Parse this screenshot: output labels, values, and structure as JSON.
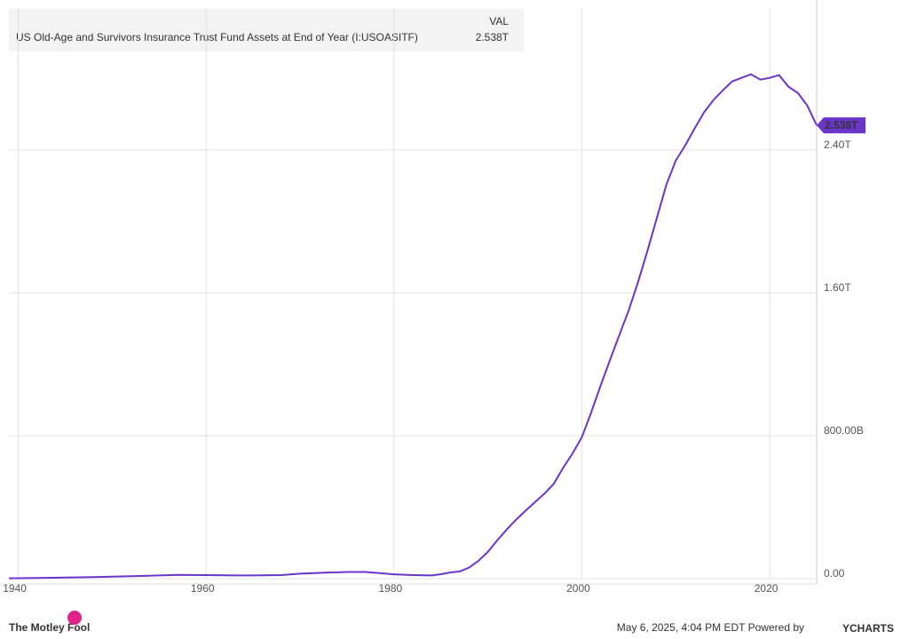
{
  "chart_data": {
    "type": "line",
    "legend_header": "VAL",
    "x": [
      1939,
      1942,
      1945,
      1948,
      1950,
      1953,
      1955,
      1957,
      1960,
      1963,
      1965,
      1968,
      1970,
      1973,
      1975,
      1977,
      1980,
      1982,
      1984,
      1985,
      1986,
      1987,
      1988,
      1989,
      1990,
      1991,
      1992,
      1993,
      1994,
      1995,
      1996,
      1997,
      1998,
      1999,
      2000,
      2001,
      2002,
      2003,
      2004,
      2005,
      2006,
      2007,
      2008,
      2009,
      2010,
      2011,
      2012,
      2013,
      2014,
      2015,
      2016,
      2017,
      2018,
      2019,
      2020,
      2021,
      2022,
      2023,
      2024,
      2025
    ],
    "series": [
      {
        "name": "US Old-Age and Survivors Insurance Trust Fund Assets at End of Year (I:USOASITF)",
        "color": "#6a35c9",
        "values": [
          2,
          4,
          6,
          9,
          11,
          15,
          18,
          21,
          20,
          18,
          18,
          20,
          28,
          34,
          37,
          37,
          24,
          20,
          18,
          25,
          35,
          40,
          62,
          100,
          150,
          215,
          275,
          330,
          380,
          428,
          475,
          530,
          620,
          700,
          792,
          931,
          1081,
          1225,
          1365,
          1504,
          1663,
          1838,
          2022,
          2206,
          2341,
          2425,
          2520,
          2610,
          2679,
          2734,
          2784,
          2804,
          2824,
          2794,
          2804,
          2819,
          2754,
          2719,
          2649,
          2538
        ],
        "value_labels": [
          null,
          null,
          null,
          null,
          null,
          null,
          null,
          null,
          null,
          null,
          null,
          null,
          null,
          null,
          null,
          null,
          null,
          null,
          null,
          null,
          null,
          null,
          null,
          null,
          null,
          null,
          null,
          null,
          null,
          null,
          null,
          null,
          null,
          null,
          null,
          null,
          null,
          null,
          null,
          null,
          null,
          null,
          null,
          null,
          null,
          null,
          null,
          null,
          null,
          null,
          null,
          null,
          null,
          null,
          null,
          null,
          null,
          null,
          null,
          "2.538T"
        ]
      }
    ],
    "xlim": [
      1939,
      2025
    ],
    "xticks": [
      1940,
      1960,
      1980,
      2000,
      2020
    ],
    "ylim": [
      0,
      3200
    ],
    "yticks": [
      {
        "value": 0,
        "label": "0.00"
      },
      {
        "value": 800,
        "label": "800.00B"
      },
      {
        "value": 1600,
        "label": "1.60T"
      },
      {
        "value": 2400,
        "label": "2.40T"
      }
    ],
    "grid": true
  },
  "footer": {
    "brand": "The Motley Fool",
    "timestamp": "May 6, 2025, 4:04 PM EDT Powered by",
    "provider": "YCHARTS"
  }
}
